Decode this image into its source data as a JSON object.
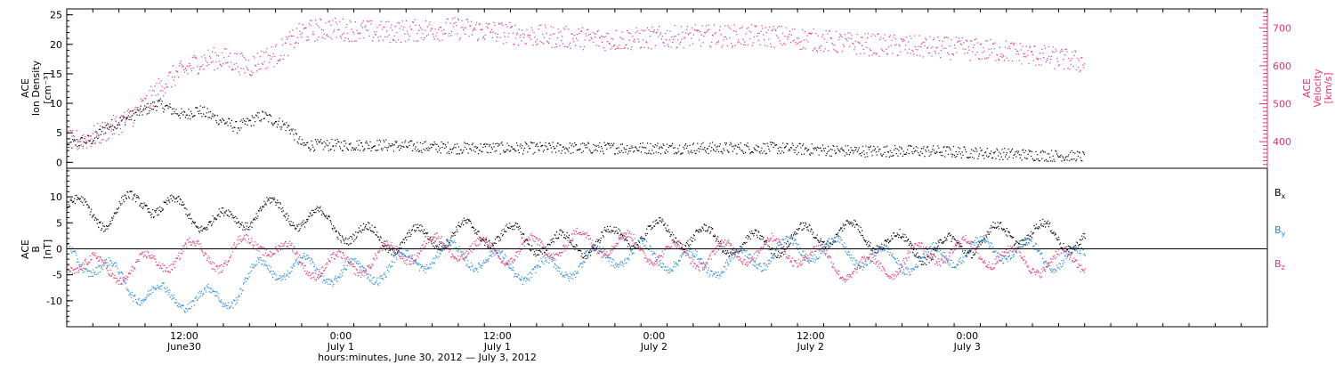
{
  "colors": {
    "black": "#000000",
    "red": "#e8336a",
    "blue": "#1e88e5"
  },
  "chart_data": [
    {
      "type": "scatter",
      "panel": "top",
      "left_axis": {
        "label_lines": [
          "ACE",
          "Ion Density",
          "[cm⁻³]"
        ],
        "range": [
          -1,
          26
        ],
        "ticks": [
          0,
          5,
          10,
          15,
          20,
          25
        ],
        "tick_labels": [
          "0",
          "5",
          "10",
          "15",
          "20",
          "25"
        ]
      },
      "right_axis": {
        "label_lines": [
          "ACE",
          "Velocity",
          "[km/s]"
        ],
        "range": [
          330,
          750
        ],
        "ticks": [
          400,
          500,
          600,
          700
        ],
        "tick_labels": [
          "400",
          "500",
          "600",
          "700"
        ],
        "color": "#e8336a"
      },
      "series": [
        {
          "color": "#000000",
          "axis": "left",
          "x_hours": [
            0,
            1,
            2,
            3,
            4,
            5,
            6,
            7,
            8,
            9,
            10,
            11,
            12,
            13,
            14,
            15,
            16,
            17,
            18,
            20,
            24,
            30,
            36,
            42,
            48,
            54,
            60,
            66,
            72,
            78
          ],
          "values": [
            3,
            3.5,
            4,
            6,
            7,
            8,
            9,
            10,
            9,
            8,
            9,
            8,
            7,
            6,
            7,
            8,
            7,
            6,
            3,
            3,
            3,
            2.5,
            2.5,
            2.5,
            2.5,
            2.5,
            2,
            2,
            1.5,
            1
          ]
        },
        {
          "color": "#e8336a",
          "axis": "right",
          "x_hours": [
            0,
            1,
            2,
            3,
            4,
            5,
            6,
            7,
            8,
            9,
            10,
            11,
            12,
            13,
            14,
            15,
            16,
            17,
            18,
            20,
            24,
            30,
            36,
            42,
            48,
            54,
            60,
            66,
            72,
            78
          ],
          "values": [
            400,
            405,
            415,
            430,
            450,
            470,
            500,
            540,
            570,
            590,
            610,
            620,
            620,
            610,
            600,
            620,
            630,
            660,
            690,
            700,
            690,
            700,
            680,
            670,
            680,
            680,
            660,
            650,
            640,
            610
          ]
        }
      ]
    },
    {
      "type": "scatter",
      "panel": "bottom",
      "left_axis": {
        "label_lines": [
          "ACE",
          "B",
          "[nT]"
        ],
        "range": [
          -15,
          15.5
        ],
        "ticks": [
          -10,
          -5,
          0,
          5,
          10
        ],
        "tick_labels": [
          "-10",
          "-5",
          "0",
          "5",
          "10"
        ]
      },
      "legend": [
        {
          "label": "B",
          "sub": "x",
          "color": "#000000"
        },
        {
          "label": "B",
          "sub": "y",
          "color": "#1e88e5"
        },
        {
          "label": "B",
          "sub": "z",
          "color": "#e8336a"
        }
      ],
      "series": [
        {
          "name": "Bx",
          "color": "#000000",
          "x_hours": [
            0,
            3,
            6,
            9,
            12,
            15,
            18,
            24,
            30,
            36,
            42,
            48,
            54,
            60,
            66,
            72,
            78
          ],
          "values": [
            8,
            5,
            9,
            8,
            6,
            7,
            5,
            3,
            2,
            2,
            2,
            2,
            2,
            2,
            1,
            2,
            2
          ]
        },
        {
          "name": "By",
          "color": "#1e88e5",
          "x_hours": [
            0,
            3,
            6,
            9,
            12,
            15,
            18,
            24,
            30,
            36,
            42,
            48,
            54,
            60,
            66,
            72,
            78
          ],
          "values": [
            -2,
            -5,
            -8,
            -8,
            -10,
            -5,
            -4,
            -3,
            -2,
            -3,
            -2,
            -2,
            -1,
            -1,
            -1,
            -1,
            -1
          ]
        },
        {
          "name": "Bz",
          "color": "#e8336a",
          "x_hours": [
            0,
            3,
            6,
            9,
            12,
            15,
            18,
            24,
            30,
            36,
            42,
            48,
            54,
            60,
            66,
            72,
            78
          ],
          "values": [
            -3,
            -4,
            -2,
            0,
            -3,
            1,
            -2,
            -2,
            0,
            1,
            0,
            0,
            -1,
            -3,
            -1,
            -2,
            -1
          ]
        }
      ]
    }
  ],
  "x_axis": {
    "range_hours": [
      0,
      92
    ],
    "title": "hours:minutes, June 30, 2012 — July  3, 2012",
    "ticks": [
      {
        "hour": 9,
        "line1": "12:00",
        "line2": "June30"
      },
      {
        "hour": 21,
        "line1": "0:00",
        "line2": "July 1"
      },
      {
        "hour": 33,
        "line1": "12:00",
        "line2": "July 1"
      },
      {
        "hour": 45,
        "line1": "0:00",
        "line2": "July 2"
      },
      {
        "hour": 57,
        "line1": "12:00",
        "line2": "July 2"
      },
      {
        "hour": 69,
        "line1": "0:00",
        "line2": "July 3"
      }
    ]
  }
}
